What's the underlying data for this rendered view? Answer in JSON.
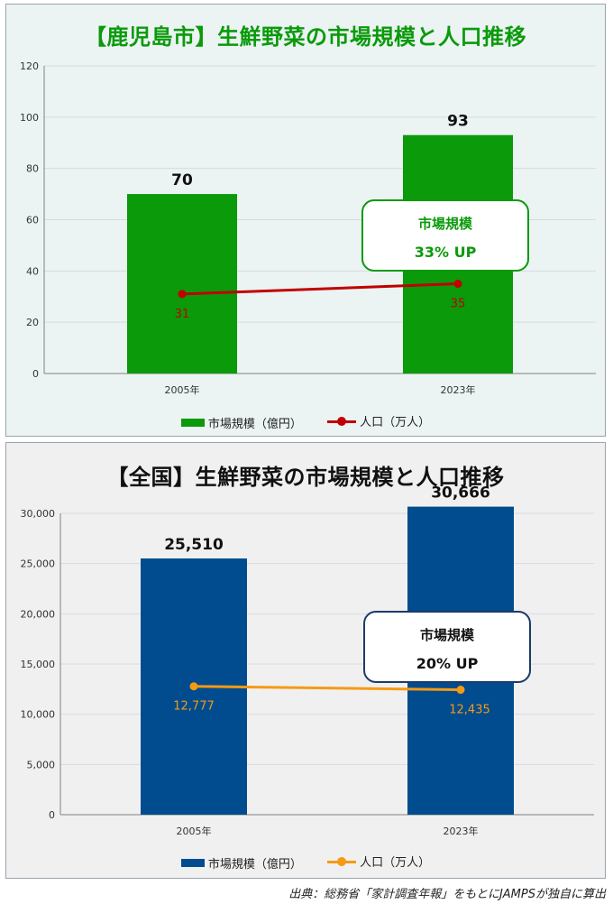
{
  "chart_data": [
    {
      "type": "bar",
      "title": "【鹿児島市】生鮮野菜の市場規模と人口推移",
      "categories": [
        "2005年",
        "2023年"
      ],
      "ylim": [
        0,
        120
      ],
      "yticks": [
        "0",
        "20",
        "40",
        "60",
        "80",
        "100",
        "120"
      ],
      "series": [
        {
          "name": "市場規模（億円）",
          "kind": "bar",
          "values": [
            70,
            93
          ],
          "labels": [
            "70",
            "93"
          ],
          "color": "#0a9a0a"
        },
        {
          "name": "人口（万人）",
          "kind": "line",
          "values": [
            31,
            35
          ],
          "labels": [
            "31",
            "35"
          ],
          "color": "#c00000"
        }
      ],
      "callout": {
        "line1": "市場規模",
        "line2": "33% UP"
      },
      "grid": true,
      "legend": "bottom"
    },
    {
      "type": "bar",
      "title": "【全国】生鮮野菜の市場規模と人口推移",
      "categories": [
        "2005年",
        "2023年"
      ],
      "ylim": [
        0,
        30000
      ],
      "yticks": [
        "0",
        "5,000",
        "10,000",
        "15,000",
        "20,000",
        "25,000",
        "30,000"
      ],
      "series": [
        {
          "name": "市場規模（億円）",
          "kind": "bar",
          "values": [
            25510,
            30666
          ],
          "labels": [
            "25,510",
            "30,666"
          ],
          "color": "#004c8f"
        },
        {
          "name": "人口（万人）",
          "kind": "line",
          "values": [
            12777,
            12435
          ],
          "labels": [
            "12,777",
            "12,435"
          ],
          "color": "#f59a14"
        }
      ],
      "callout": {
        "line1": "市場規模",
        "line2": "20% UP"
      },
      "grid": true,
      "legend": "bottom"
    }
  ],
  "source": "出典：総務省「家計調査年報」をもとにJAMPSが独自に算出"
}
